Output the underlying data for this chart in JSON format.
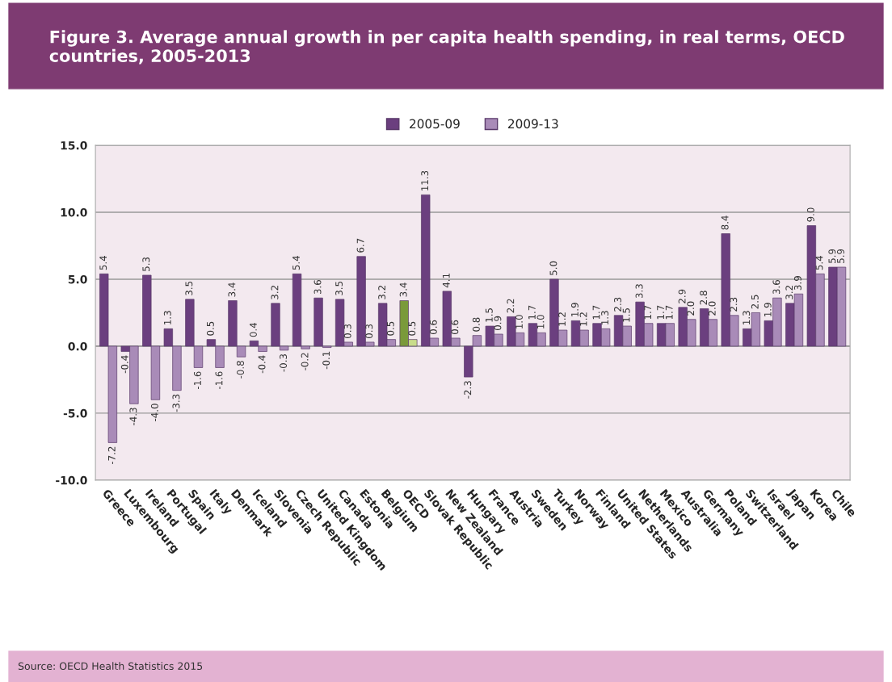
{
  "chart_data": {
    "type": "bar",
    "title": "Figure 3. Average annual growth in per capita health spending, in real terms, OECD countries, 2005-2013",
    "categories": [
      "Greece",
      "Luxembourg",
      "Ireland",
      "Portugal",
      "Spain",
      "Italy",
      "Denmark",
      "Iceland",
      "Slovenia",
      "Czech Republic",
      "United Kingdom",
      "Canada",
      "Estonia",
      "Belgium",
      "OECD",
      "Slovak Republic",
      "New Zealand",
      "Hungary",
      "France",
      "Austria",
      "Sweden",
      "Turkey",
      "Norway",
      "Finland",
      "United States",
      "Netherlands",
      "Mexico",
      "Australia",
      "Germany",
      "Poland",
      "Switzerland",
      "Israel",
      "Japan",
      "Korea",
      "Chile"
    ],
    "series": [
      {
        "name": "2005-09",
        "color": "#6b3f7f",
        "colors": [
          "#6b3f7f",
          "#6b3f7f",
          "#6b3f7f",
          "#6b3f7f",
          "#6b3f7f",
          "#6b3f7f",
          "#6b3f7f",
          "#6b3f7f",
          "#6b3f7f",
          "#6b3f7f",
          "#6b3f7f",
          "#6b3f7f",
          "#6b3f7f",
          "#6b3f7f",
          "#7a9a3a",
          "#6b3f7f",
          "#6b3f7f",
          "#6b3f7f",
          "#6b3f7f",
          "#6b3f7f",
          "#6b3f7f",
          "#6b3f7f",
          "#6b3f7f",
          "#6b3f7f",
          "#6b3f7f",
          "#6b3f7f",
          "#6b3f7f",
          "#6b3f7f",
          "#6b3f7f",
          "#6b3f7f",
          "#6b3f7f",
          "#6b3f7f",
          "#6b3f7f",
          "#6b3f7f",
          "#6b3f7f"
        ],
        "values": [
          5.4,
          -0.4,
          5.3,
          1.3,
          3.5,
          0.5,
          3.4,
          0.4,
          3.2,
          5.4,
          3.6,
          3.5,
          6.7,
          3.2,
          3.4,
          11.3,
          4.1,
          -2.3,
          1.5,
          2.2,
          1.7,
          5.0,
          1.9,
          1.7,
          2.3,
          3.3,
          1.7,
          2.9,
          2.8,
          8.4,
          1.3,
          1.9,
          3.2,
          9.0,
          5.9
        ],
        "value_labels": [
          "5.4",
          "-0.4",
          "5.3",
          "1.3",
          "3.5",
          "0.5",
          "3.4",
          "0.4",
          "3.2",
          "5.4",
          "3.6",
          "3.5",
          "6.7",
          "3.2",
          "3.4",
          "11.3",
          "4.1",
          "-2.3",
          "1.5",
          "2.2",
          "1.7",
          "5.0",
          "1.9",
          "1.7",
          "2.3",
          "3.3",
          "1.7",
          "2.9",
          "2.8",
          "8.4",
          "1.3",
          "1.9",
          "3.2",
          "9.0",
          "5.9"
        ]
      },
      {
        "name": "2009-13",
        "color": "#a98bb8",
        "colors": [
          "#a98bb8",
          "#a98bb8",
          "#a98bb8",
          "#a98bb8",
          "#a98bb8",
          "#a98bb8",
          "#a98bb8",
          "#a98bb8",
          "#a98bb8",
          "#a98bb8",
          "#a98bb8",
          "#a98bb8",
          "#a98bb8",
          "#a98bb8",
          "#c8dc8a",
          "#a98bb8",
          "#a98bb8",
          "#a98bb8",
          "#a98bb8",
          "#a98bb8",
          "#a98bb8",
          "#a98bb8",
          "#a98bb8",
          "#a98bb8",
          "#a98bb8",
          "#a98bb8",
          "#a98bb8",
          "#a98bb8",
          "#a98bb8",
          "#a98bb8",
          "#a98bb8",
          "#a98bb8",
          "#a98bb8",
          "#a98bb8",
          "#a98bb8"
        ],
        "values": [
          -7.2,
          -4.3,
          -4.0,
          -3.3,
          -1.6,
          -1.6,
          -0.8,
          -0.4,
          -0.3,
          -0.2,
          -0.1,
          0.3,
          0.3,
          0.5,
          0.5,
          0.6,
          0.6,
          0.8,
          0.9,
          1.0,
          1.0,
          1.2,
          1.2,
          1.3,
          1.5,
          1.7,
          1.7,
          2.0,
          2.0,
          2.3,
          2.5,
          3.6,
          3.9,
          5.4,
          5.9
        ],
        "value_labels": [
          "-7.2",
          "-4.3",
          "-4.0",
          "-3.3",
          "-1.6",
          "-1.6",
          "-0.8",
          "-0.4",
          "-0.3",
          "-0.2",
          "-0.1",
          "0.3",
          "0.3",
          "0.5",
          "0.5",
          "0.6",
          "0.6",
          "0.8",
          "0.9",
          "1.0",
          "1.0",
          "1.2",
          "1.2",
          "1.3",
          "1.5",
          "1.7",
          "1.7",
          "2.0",
          "2.0",
          "2.3",
          "2.5",
          "3.6",
          "3.9",
          "5.4",
          "5.9"
        ]
      }
    ],
    "ylim": [
      -10,
      15
    ],
    "yticks": [
      {
        "value": -10,
        "label": "-10.0"
      },
      {
        "value": -5,
        "label": "-5.0"
      },
      {
        "value": 0,
        "label": "0.0"
      },
      {
        "value": 5,
        "label": "5.0"
      },
      {
        "value": 10,
        "label": "10.0"
      },
      {
        "value": 15,
        "label": "15.0"
      }
    ],
    "grid": "y",
    "legend": "top",
    "annotations": [
      "Source: OECD Health Statistics 2015"
    ]
  }
}
